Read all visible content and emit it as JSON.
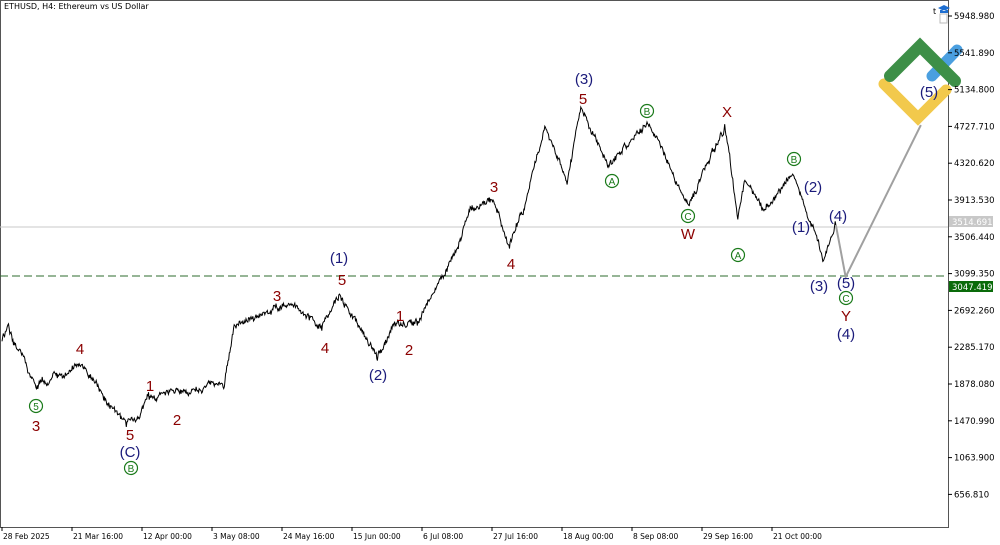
{
  "header": {
    "title": "ETHUSD, H4:  Ethereum vs US Dollar"
  },
  "toolbar": {
    "one_click_label": "t"
  },
  "colors": {
    "wave_red": "#8b0000",
    "wave_navy": "#1a1a7a",
    "wave_green": "#1a7a1a",
    "price_line": "#000000",
    "level_line": "#c8c8c8",
    "ask_line": "#2e6b2e",
    "projection": "#a0a0a0"
  },
  "chart_data": {
    "type": "line",
    "symbol": "ETHUSD",
    "timeframe": "H4",
    "y_ticks": [
      "5948.980",
      "5541.890",
      "5134.800",
      "4727.710",
      "4320.620",
      "3913.530",
      "3506.440",
      "3099.350",
      "2692.260",
      "2285.170",
      "1878.080",
      "1470.990",
      "1063.900",
      "656.810"
    ],
    "ylim": [
      656.81,
      5948.98
    ],
    "x_ticks": [
      "28 Feb 2025",
      "21 Mar 16:00",
      "12 Apr 00:00",
      "3 May 08:00",
      "24 May 16:00",
      "15 Jun 00:00",
      "6 Jul 08:00",
      "27 Jul 16:00",
      "18 Aug 00:00",
      "8 Sep 08:00",
      "29 Sep 16:00",
      "21 Oct 00:00"
    ],
    "series": [
      {
        "points": [
          [
            "2025-02-28",
            2365
          ],
          [
            "2025-03-02",
            2531
          ],
          [
            "2025-03-10",
            1867
          ],
          [
            "2025-03-24",
            2088
          ],
          [
            "2025-04-07",
            1424
          ],
          [
            "2025-04-14",
            1701
          ],
          [
            "2025-04-22",
            1812
          ],
          [
            "2025-05-07",
            1867
          ],
          [
            "2025-05-10",
            2531
          ],
          [
            "2025-05-27",
            2752
          ],
          [
            "2025-06-06",
            2531
          ],
          [
            "2025-06-11",
            2863
          ],
          [
            "2025-06-23",
            2199
          ],
          [
            "2025-06-29",
            2564
          ],
          [
            "2025-07-05",
            2531
          ],
          [
            "2025-07-12",
            3028
          ],
          [
            "2025-07-16",
            3305
          ],
          [
            "2025-07-21",
            3803
          ],
          [
            "2025-07-28",
            3913
          ],
          [
            "2025-08-02",
            3416
          ],
          [
            "2025-08-06",
            3747
          ],
          [
            "2025-08-13",
            4743
          ],
          [
            "2025-08-20",
            4135
          ],
          [
            "2025-08-24",
            4931
          ],
          [
            "2025-09-01",
            4301
          ],
          [
            "2025-09-14",
            4743
          ],
          [
            "2025-09-26",
            3858
          ],
          [
            "2025-10-07",
            4743
          ],
          [
            "2025-10-11",
            3692
          ],
          [
            "2025-10-13",
            4135
          ],
          [
            "2025-10-19",
            3803
          ],
          [
            "2025-10-28",
            4190
          ],
          [
            "2025-11-03",
            3637
          ],
          [
            "2025-11-06",
            3227
          ],
          [
            "2025-11-10",
            3637
          ]
        ]
      }
    ],
    "projection": [
      [
        "2025-11-13",
        3062
      ],
      [
        "2025-12-06",
        4743
      ]
    ],
    "bid_price": "3514.691",
    "ask_price": "3047.419",
    "wave_labels": [
      "(3)",
      "5",
      "B",
      "X",
      "A",
      "C",
      "W",
      "3",
      "4",
      "(1)",
      "5",
      "3",
      "4",
      "1",
      "2",
      "(2)",
      "4",
      "1",
      "2",
      "5",
      "3",
      "5",
      "(C)",
      "B",
      "B",
      "(2)",
      "(1)",
      "A",
      "(3)",
      "(4)",
      "(5)",
      "C",
      "Y",
      "(4)",
      "(5)"
    ]
  }
}
